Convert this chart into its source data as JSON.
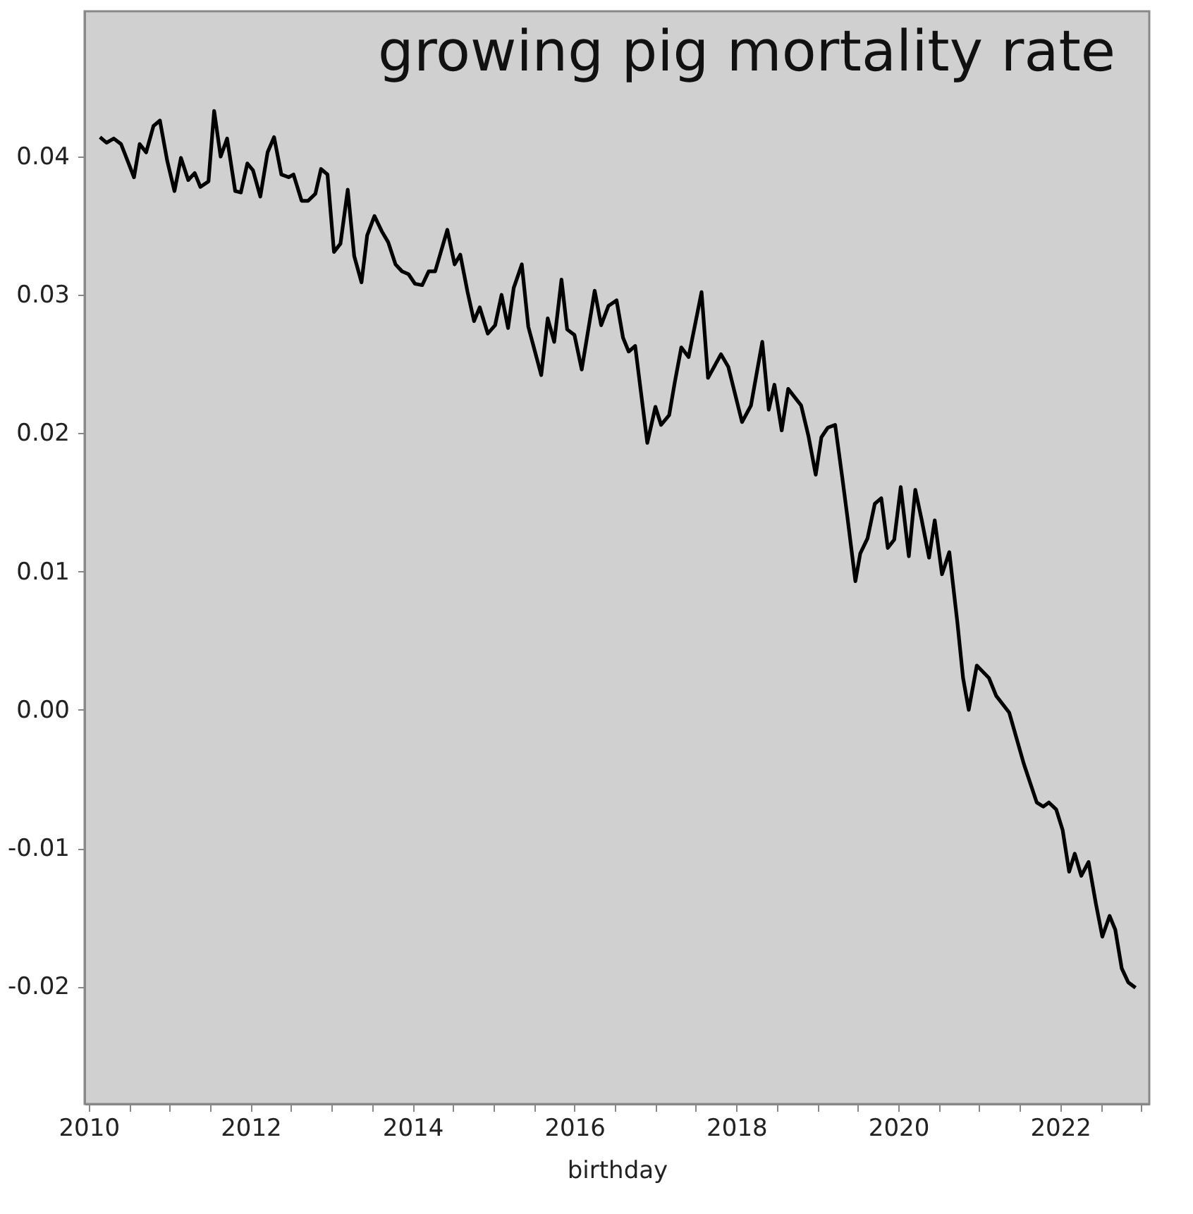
{
  "chart_data": {
    "type": "line",
    "title": "growing pig mortality rate",
    "xlabel": "birthday",
    "xlim": [
      2009.95,
      2023.1
    ],
    "ylim": [
      -0.0285,
      0.0505
    ],
    "xticks": [
      2010,
      {
        "value": 2010.5,
        "label": null
      },
      {
        "value": 2011,
        "label": null
      },
      {
        "value": 2011.5,
        "label": null
      },
      2012,
      {
        "value": 2012.5,
        "label": null
      },
      {
        "value": 2013,
        "label": null
      },
      {
        "value": 2013.5,
        "label": null
      },
      2014,
      {
        "value": 2014.5,
        "label": null
      },
      {
        "value": 2015,
        "label": null
      },
      {
        "value": 2015.5,
        "label": null
      },
      2016,
      {
        "value": 2016.5,
        "label": null
      },
      {
        "value": 2017,
        "label": null
      },
      {
        "value": 2017.5,
        "label": null
      },
      2018,
      {
        "value": 2018.5,
        "label": null
      },
      {
        "value": 2019,
        "label": null
      },
      {
        "value": 2019.5,
        "label": null
      },
      2020,
      {
        "value": 2020.5,
        "label": null
      },
      {
        "value": 2021,
        "label": null
      },
      {
        "value": 2021.5,
        "label": null
      },
      2022,
      {
        "value": 2022.5,
        "label": null
      },
      {
        "value": 2023,
        "label": null
      }
    ],
    "yticks": [
      -0.02,
      -0.01,
      {
        "value": 0,
        "label": "0.00"
      },
      0.01,
      0.02,
      0.03,
      0.04
    ],
    "grid": false,
    "marker": "none",
    "line_style": "solid",
    "series": [
      {
        "color": "#000000",
        "x": [
          2010.14,
          2010.22,
          2010.31,
          2010.4,
          2010.48,
          2010.56,
          2010.63,
          2010.71,
          2010.8,
          2010.88,
          2010.97,
          2011.06,
          2011.14,
          2011.23,
          2011.31,
          2011.38,
          2011.48,
          2011.55,
          2011.63,
          2011.71,
          2011.81,
          2011.88,
          2011.96,
          2012.03,
          2012.12,
          2012.21,
          2012.29,
          2012.38,
          2012.47,
          2012.53,
          2012.63,
          2012.71,
          2012.8,
          2012.87,
          2012.95,
          2013.03,
          2013.11,
          2013.2,
          2013.28,
          2013.37,
          2013.44,
          2013.53,
          2013.62,
          2013.7,
          2013.79,
          2013.87,
          2013.95,
          2014.03,
          2014.12,
          2014.2,
          2014.28,
          2014.43,
          2014.52,
          2014.59,
          2014.68,
          2014.76,
          2014.83,
          2014.93,
          2015.02,
          2015.1,
          2015.18,
          2015.25,
          2015.35,
          2015.43,
          2015.59,
          2015.67,
          2015.75,
          2015.84,
          2015.91,
          2016.0,
          2016.09,
          2016.25,
          2016.33,
          2016.42,
          2016.52,
          2016.6,
          2016.67,
          2016.75,
          2016.9,
          2017.0,
          2017.07,
          2017.17,
          2017.24,
          2017.32,
          2017.41,
          2017.57,
          2017.65,
          2017.81,
          2017.9,
          2018.07,
          2018.18,
          2018.32,
          2018.4,
          2018.47,
          2018.56,
          2018.64,
          2018.8,
          2018.89,
          2018.98,
          2019.05,
          2019.13,
          2019.22,
          2019.31,
          2019.37,
          2019.47,
          2019.53,
          2019.62,
          2019.71,
          2019.79,
          2019.87,
          2019.95,
          2020.03,
          2020.13,
          2020.21,
          2020.29,
          2020.38,
          2020.45,
          2020.54,
          2020.63,
          2020.73,
          2020.8,
          2020.87,
          2020.97,
          2021.12,
          2021.21,
          2021.37,
          2021.55,
          2021.71,
          2021.79,
          2021.86,
          2021.95,
          2022.03,
          2022.11,
          2022.18,
          2022.26,
          2022.35,
          2022.44,
          2022.52,
          2022.61,
          2022.68,
          2022.76,
          2022.84,
          2022.93
        ],
        "values": [
          0.0414,
          0.041,
          0.0413,
          0.0409,
          0.0397,
          0.0385,
          0.0409,
          0.0403,
          0.0422,
          0.0426,
          0.0397,
          0.0375,
          0.0399,
          0.0383,
          0.0388,
          0.0378,
          0.0382,
          0.0433,
          0.04,
          0.0413,
          0.0375,
          0.0374,
          0.0395,
          0.039,
          0.0371,
          0.0403,
          0.0414,
          0.0387,
          0.0385,
          0.0387,
          0.0368,
          0.0368,
          0.0373,
          0.0391,
          0.0387,
          0.0331,
          0.0337,
          0.0376,
          0.0328,
          0.0309,
          0.0343,
          0.0357,
          0.0346,
          0.0338,
          0.0322,
          0.0317,
          0.0315,
          0.0308,
          0.0307,
          0.0317,
          0.0317,
          0.0347,
          0.0322,
          0.0329,
          0.0302,
          0.0281,
          0.0291,
          0.0272,
          0.0278,
          0.03,
          0.0276,
          0.0305,
          0.0322,
          0.0277,
          0.0242,
          0.0283,
          0.0266,
          0.0311,
          0.0275,
          0.0271,
          0.0246,
          0.0303,
          0.0278,
          0.0292,
          0.0296,
          0.0269,
          0.0259,
          0.0263,
          0.0193,
          0.0219,
          0.0206,
          0.0213,
          0.0237,
          0.0262,
          0.0255,
          0.0302,
          0.024,
          0.0257,
          0.0248,
          0.0208,
          0.022,
          0.0266,
          0.0217,
          0.0235,
          0.0202,
          0.0232,
          0.022,
          0.0198,
          0.017,
          0.0197,
          0.0204,
          0.0206,
          0.0167,
          0.014,
          0.0093,
          0.0113,
          0.0124,
          0.0149,
          0.0153,
          0.0117,
          0.0123,
          0.0161,
          0.0111,
          0.0159,
          0.0137,
          0.011,
          0.0137,
          0.0098,
          0.0114,
          0.0063,
          0.0023,
          0.0,
          0.0032,
          0.0023,
          0.001,
          -0.0002,
          -0.0039,
          -0.0067,
          -0.007,
          -0.0067,
          -0.0072,
          -0.0087,
          -0.0117,
          -0.0104,
          -0.012,
          -0.011,
          -0.014,
          -0.0164,
          -0.0149,
          -0.0159,
          -0.0187,
          -0.0197,
          -0.0201
        ]
      }
    ]
  }
}
